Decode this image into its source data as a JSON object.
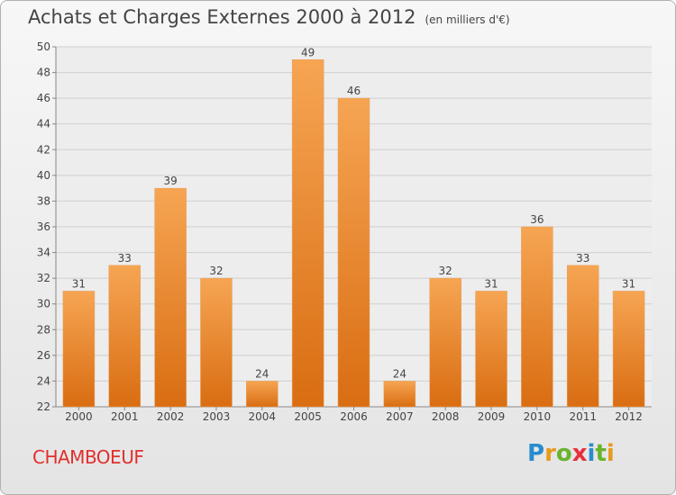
{
  "header": {
    "title": "Achats et Charges Externes 2000 à 2012",
    "unit": "(en milliers d'€)"
  },
  "footer": {
    "town": "CHAMBOEUF",
    "logo": [
      "P",
      "r",
      "o",
      "x",
      "i",
      "t",
      "i"
    ]
  },
  "colors": {
    "bar_top": "#f6a553",
    "bar_bottom": "#d96d12",
    "title": "#444444",
    "town": "#e0302e"
  },
  "chart_data": {
    "type": "bar",
    "title": "Achats et Charges Externes 2000 à 2012",
    "subtitle": "(en milliers d'€)",
    "categories": [
      "2000",
      "2001",
      "2002",
      "2003",
      "2004",
      "2005",
      "2006",
      "2007",
      "2008",
      "2009",
      "2010",
      "2011",
      "2012"
    ],
    "values": [
      31,
      33,
      39,
      32,
      24,
      49,
      46,
      24,
      32,
      31,
      36,
      33,
      31
    ],
    "ylim": [
      22,
      50
    ],
    "yticks": [
      22,
      24,
      26,
      28,
      30,
      32,
      34,
      36,
      38,
      40,
      42,
      44,
      46,
      48,
      50
    ],
    "grid": true,
    "data_labels": true
  }
}
